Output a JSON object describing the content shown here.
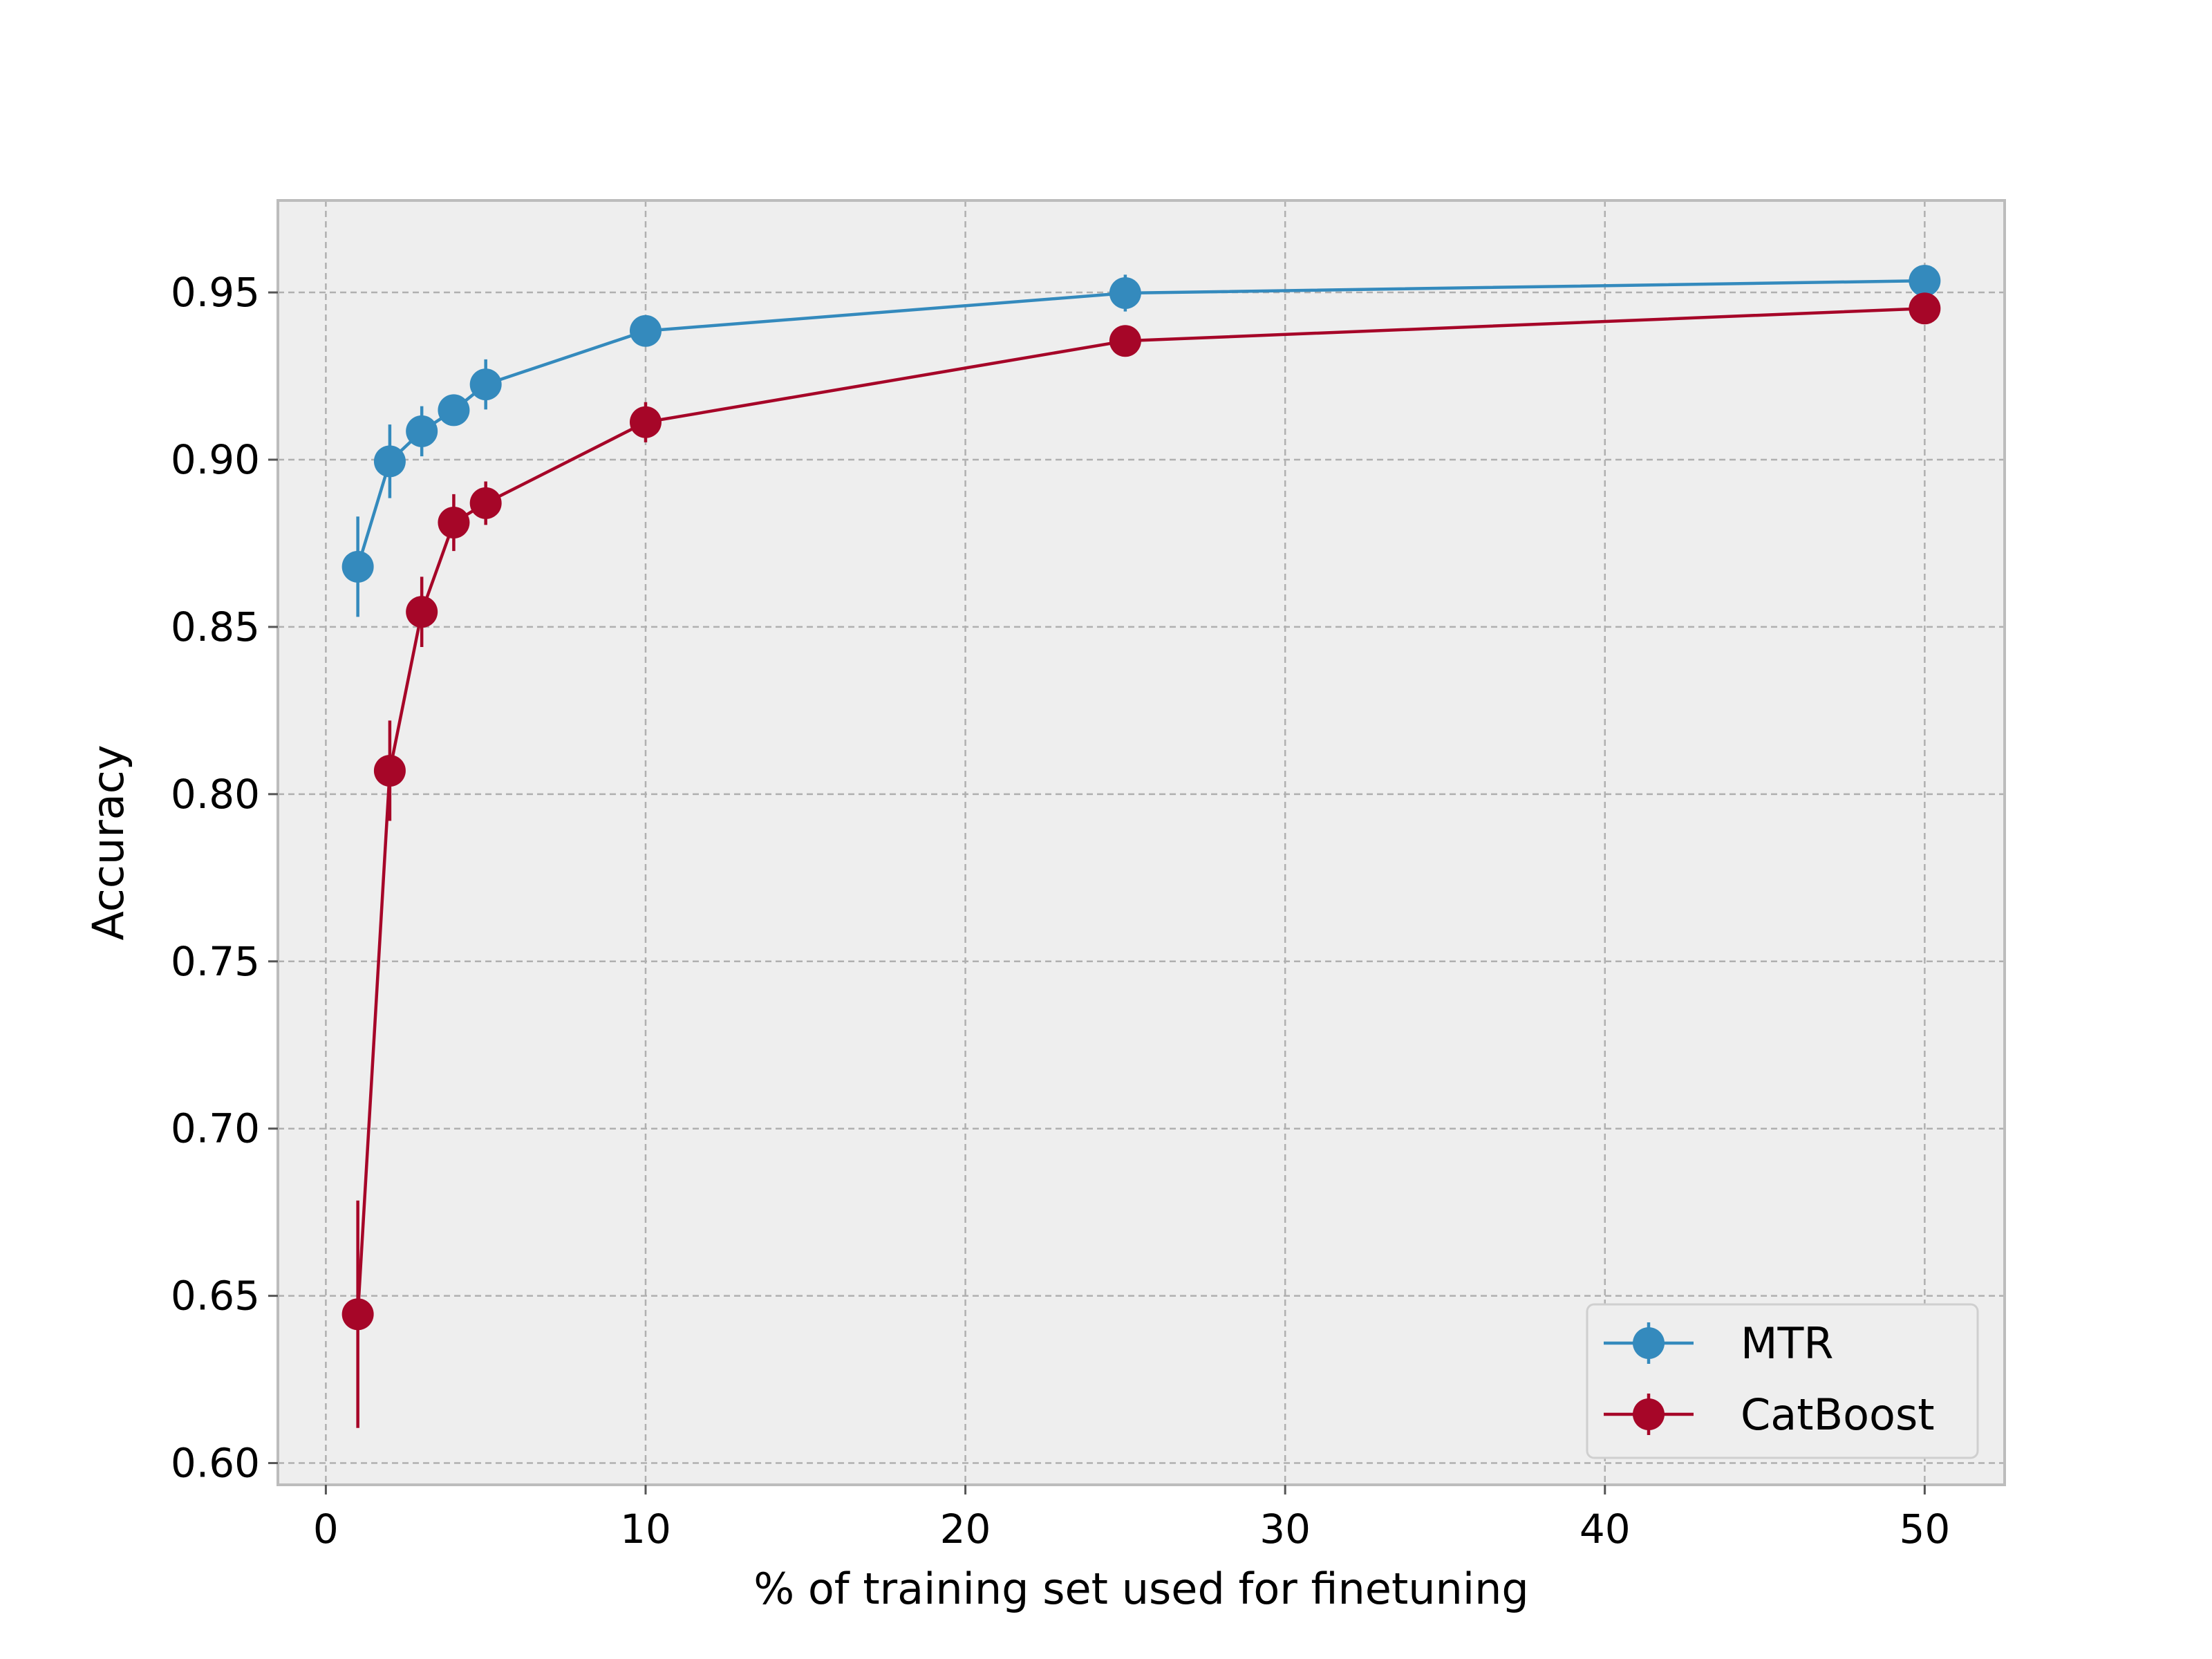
{
  "chart_data": {
    "type": "line",
    "title": "",
    "xlabel": "% of training set used for finetuning",
    "ylabel": "Accuracy",
    "xlim": [
      -1.5,
      52.5
    ],
    "ylim": [
      0.5935,
      0.9775
    ],
    "xticks": [
      0,
      10,
      20,
      30,
      40,
      50
    ],
    "xtick_labels": [
      "0",
      "10",
      "20",
      "30",
      "40",
      "50"
    ],
    "yticks": [
      0.6,
      0.65,
      0.7,
      0.75,
      0.8,
      0.85,
      0.9,
      0.95
    ],
    "ytick_labels": [
      "0.60",
      "0.65",
      "0.70",
      "0.75",
      "0.80",
      "0.85",
      "0.90",
      "0.95"
    ],
    "grid": true,
    "legend_position": "bottom-right",
    "series": [
      {
        "name": "MTR",
        "color": "#348abd",
        "x": [
          1,
          2,
          3,
          4,
          5,
          10,
          25,
          50
        ],
        "y": [
          0.868,
          0.8995,
          0.9085,
          0.9148,
          0.9225,
          0.9385,
          0.9498,
          0.9535
        ],
        "yerr": [
          0.015,
          0.011,
          0.0075,
          0.0045,
          0.0075,
          0.0035,
          0.0055,
          0.003
        ]
      },
      {
        "name": "CatBoost",
        "color": "#a60628",
        "x": [
          1,
          2,
          3,
          4,
          5,
          10,
          25,
          50
        ],
        "y": [
          0.6445,
          0.807,
          0.8545,
          0.8812,
          0.887,
          0.9112,
          0.9355,
          0.9452
        ],
        "yerr": [
          0.034,
          0.015,
          0.0105,
          0.0085,
          0.0065,
          0.006,
          0.0035,
          0.002
        ]
      }
    ]
  }
}
